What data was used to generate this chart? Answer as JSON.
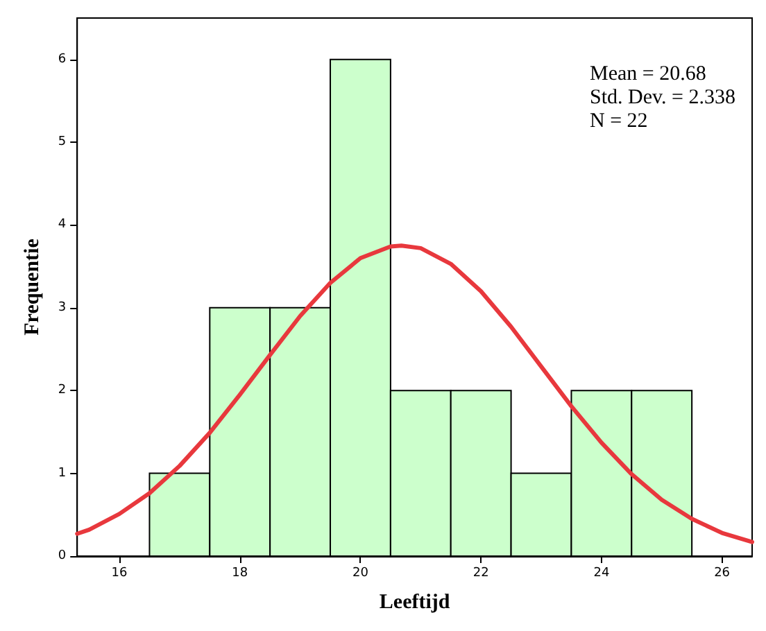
{
  "chart_data": {
    "type": "histogram",
    "xlabel": "Leeftijd",
    "ylabel": "Frequentie",
    "annotations": [
      "Mean = 20.68",
      "Std. Dev. = 2.338",
      "N = 22"
    ],
    "bins": [
      16.5,
      17.5,
      18.5,
      19.5,
      20.5,
      21.5,
      22.5,
      23.5,
      24.5,
      25.5
    ],
    "values": [
      1,
      3,
      3,
      6,
      2,
      2,
      1,
      2,
      2
    ],
    "color": "#ccffcc",
    "xlim": [
      15.3,
      26.5
    ],
    "xticks": [
      16,
      18,
      20,
      22,
      24,
      26
    ],
    "ylim": [
      0,
      6.5
    ],
    "yticks": [
      0,
      1,
      2,
      3,
      4,
      5,
      6
    ],
    "marker": "none",
    "series": [
      {
        "type": "line",
        "color": "#e8383d",
        "x": [
          15.3,
          15.5,
          16,
          16.5,
          17,
          17.5,
          18,
          18.5,
          19,
          19.5,
          20,
          20.5,
          20.68,
          21,
          21.5,
          22,
          22.5,
          23,
          23.5,
          24,
          24.5,
          25,
          25.5,
          26,
          26.5
        ],
        "values": [
          0.27,
          0.32,
          0.51,
          0.76,
          1.09,
          1.49,
          1.95,
          2.43,
          2.9,
          3.3,
          3.6,
          3.74,
          3.75,
          3.72,
          3.53,
          3.2,
          2.77,
          2.29,
          1.81,
          1.37,
          0.99,
          0.68,
          0.45,
          0.28,
          0.17
        ]
      }
    ]
  }
}
